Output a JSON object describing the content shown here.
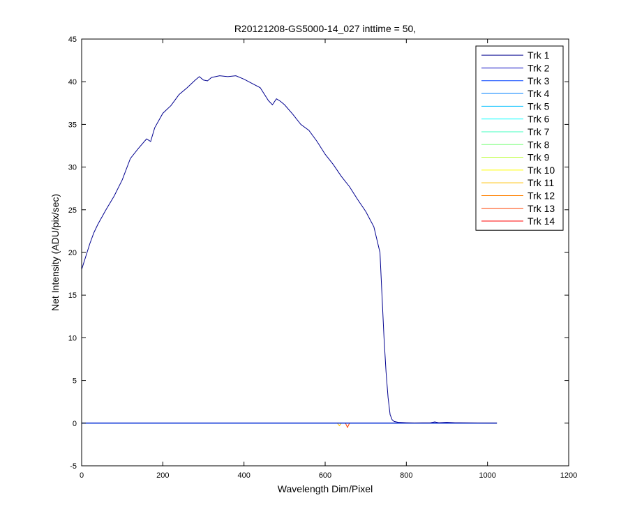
{
  "chart_data": {
    "type": "line",
    "title": "R20121208-GS5000-14_027 inttime = 50,",
    "xlabel": "Wavelength Dim/Pixel",
    "ylabel": "Net Intensity (ADU/pix/sec)",
    "xlim": [
      0,
      1200
    ],
    "ylim": [
      -5,
      45
    ],
    "xticks": [
      0,
      200,
      400,
      600,
      800,
      1000,
      1200
    ],
    "yticks": [
      -5,
      0,
      5,
      10,
      15,
      20,
      25,
      30,
      35,
      40,
      45
    ],
    "grid": false,
    "legend_position": "top-right",
    "series": [
      {
        "name": "Trk 1",
        "color": "#00008f",
        "x": [
          0,
          10,
          20,
          30,
          40,
          60,
          80,
          100,
          120,
          140,
          160,
          170,
          180,
          200,
          220,
          240,
          260,
          280,
          290,
          300,
          310,
          320,
          340,
          360,
          380,
          400,
          420,
          440,
          460,
          470,
          480,
          490,
          500,
          520,
          540,
          560,
          580,
          600,
          620,
          640,
          660,
          680,
          700,
          720,
          735,
          740,
          745,
          750,
          755,
          760,
          765,
          770,
          780,
          800,
          820,
          860,
          870,
          880,
          900,
          920,
          930,
          1023
        ],
        "y": [
          18,
          19.5,
          21,
          22.3,
          23.3,
          25,
          26.6,
          28.5,
          31,
          32.2,
          33.3,
          33,
          34.6,
          36.3,
          37.2,
          38.5,
          39.3,
          40.2,
          40.6,
          40.2,
          40.1,
          40.5,
          40.7,
          40.6,
          40.7,
          40.3,
          39.8,
          39.3,
          37.8,
          37.3,
          38,
          37.7,
          37.3,
          36.2,
          35,
          34.3,
          33,
          31.5,
          30.3,
          28.9,
          27.7,
          26.2,
          24.8,
          23,
          20,
          15,
          10,
          6,
          3,
          1,
          0.4,
          0.2,
          0.1,
          0.05,
          0.02,
          0.05,
          0.15,
          0.05,
          0.1,
          0.05,
          0.05,
          0
        ]
      },
      {
        "name": "Trk 2",
        "color": "#0000bf",
        "x": [
          0,
          1023
        ],
        "y": [
          0,
          0
        ]
      },
      {
        "name": "Trk 3",
        "color": "#0040ff",
        "x": [
          0,
          1023
        ],
        "y": [
          0,
          0
        ]
      },
      {
        "name": "Trk 4",
        "color": "#0080ff",
        "x": [
          0,
          1023
        ],
        "y": [
          0,
          0
        ]
      },
      {
        "name": "Trk 5",
        "color": "#00bfff",
        "x": [
          0,
          1023
        ],
        "y": [
          0,
          0
        ]
      },
      {
        "name": "Trk 6",
        "color": "#00ffff",
        "x": [
          0,
          1023
        ],
        "y": [
          0,
          0
        ]
      },
      {
        "name": "Trk 7",
        "color": "#40ffbf",
        "x": [
          0,
          1023
        ],
        "y": [
          0,
          0
        ]
      },
      {
        "name": "Trk 8",
        "color": "#80ff80",
        "x": [
          0,
          1023
        ],
        "y": [
          0,
          0
        ]
      },
      {
        "name": "Trk 9",
        "color": "#bfff40",
        "x": [
          0,
          1023
        ],
        "y": [
          0,
          0
        ]
      },
      {
        "name": "Trk 10",
        "color": "#ffff00",
        "x": [
          0,
          1023
        ],
        "y": [
          0,
          0
        ]
      },
      {
        "name": "Trk 11",
        "color": "#ffbf00",
        "x": [
          0,
          630,
          635,
          640,
          1023
        ],
        "y": [
          0,
          0,
          -0.3,
          0,
          0
        ]
      },
      {
        "name": "Trk 12",
        "color": "#ff8000",
        "x": [
          0,
          1023
        ],
        "y": [
          0,
          0
        ]
      },
      {
        "name": "Trk 13",
        "color": "#ff4000",
        "x": [
          0,
          650,
          655,
          660,
          1023
        ],
        "y": [
          0,
          0,
          -0.5,
          0,
          0
        ]
      },
      {
        "name": "Trk 14",
        "color": "#ff0000",
        "x": [
          0,
          1023
        ],
        "y": [
          0,
          0
        ]
      }
    ]
  }
}
